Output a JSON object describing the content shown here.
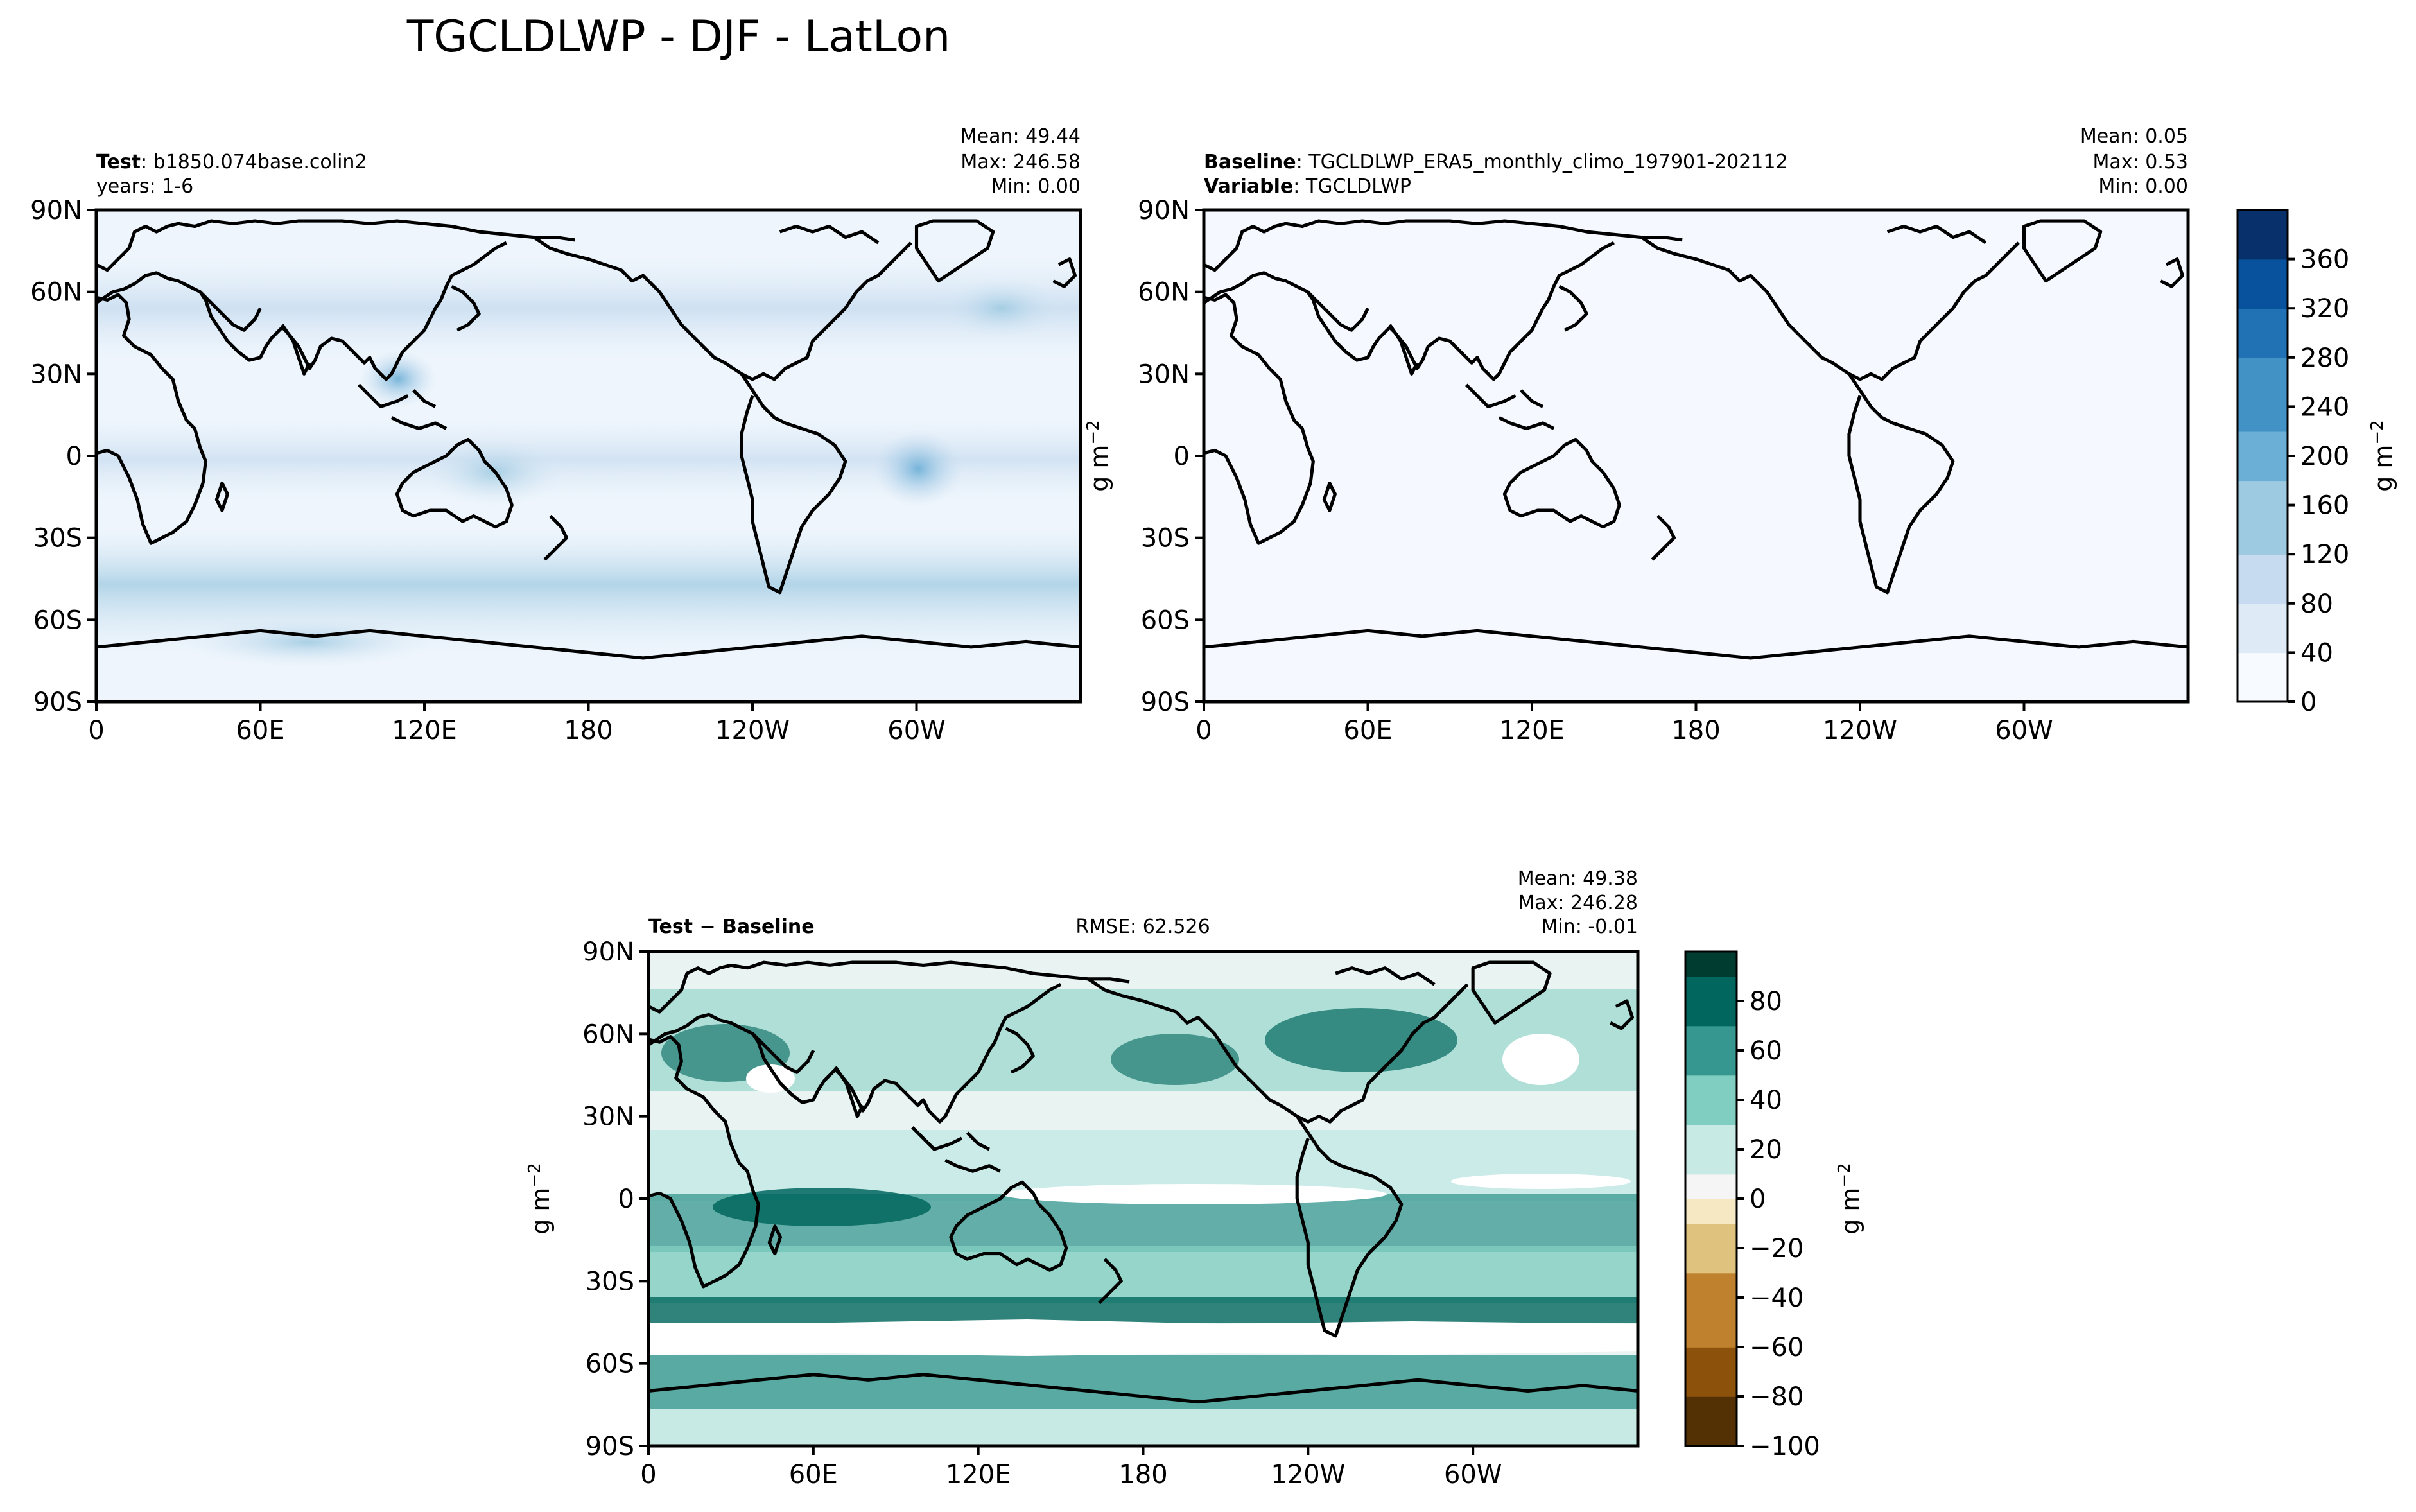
{
  "title": "TGCLDLWP - DJF - LatLon",
  "colors": {
    "test_blues": [
      "#f7fbff",
      "#deebf7",
      "#c6dbef",
      "#9ecae1",
      "#6baed6",
      "#4292c6",
      "#2171b5",
      "#08519c",
      "#08306b"
    ],
    "diff_brbg": [
      "#543005",
      "#8c510a",
      "#bf812d",
      "#dfc27d",
      "#f6e8c3",
      "#f5f5f5",
      "#c7eae5",
      "#80cdc1",
      "#35978f",
      "#01665e",
      "#003c30"
    ]
  },
  "panels": {
    "test": {
      "label_bold": "Test",
      "label_text": ": b1850.074base.colin2",
      "line2": "years: 1-6",
      "mean": "Mean: 49.44",
      "max": "Max: 246.58",
      "min": "Min:  0.00"
    },
    "baseline": {
      "label_bold": "Baseline",
      "label_text": ": TGCLDLWP_ERA5_monthly_climo_197901-202112",
      "line2_bold": "Variable",
      "line2_text": ": TGCLDLWP",
      "mean": "Mean:  0.05",
      "max": "Max:  0.53",
      "min": "Min:  0.00"
    },
    "diff": {
      "label_bold": "Test − Baseline",
      "rmse": "RMSE: 62.526",
      "mean": "Mean: 49.38",
      "max": "Max: 246.28",
      "min": "Min: -0.01"
    }
  },
  "units": {
    "text": "g m",
    "exponent": "−2"
  },
  "chart_data": [
    {
      "type": "heatmap",
      "name": "Test",
      "x_ticks": [
        "0",
        "60E",
        "120E",
        "180",
        "120W",
        "60W"
      ],
      "y_ticks": [
        "90N",
        "60N",
        "30N",
        "0",
        "30S",
        "60S",
        "90S"
      ],
      "xlim": [
        0,
        360
      ],
      "ylim": [
        -90,
        90
      ],
      "colorbar": {
        "levels": [
          0,
          20,
          40,
          60,
          80,
          100,
          120,
          140,
          160,
          180,
          200,
          220,
          240,
          260,
          280,
          300,
          320,
          340,
          360,
          380
        ],
        "tick_labels": [
          "0",
          "40",
          "80",
          "120",
          "160",
          "200",
          "240",
          "280",
          "320",
          "360"
        ],
        "units": "g m⁻²"
      },
      "stats": {
        "mean": 49.44,
        "max": 246.58,
        "min": 0.0
      }
    },
    {
      "type": "heatmap",
      "name": "Baseline",
      "x_ticks": [
        "0",
        "60E",
        "120E",
        "180",
        "120W",
        "60W"
      ],
      "y_ticks": [
        "90N",
        "60N",
        "30N",
        "0",
        "30S",
        "60S",
        "90S"
      ],
      "xlim": [
        0,
        360
      ],
      "ylim": [
        -90,
        90
      ],
      "stats": {
        "mean": 0.05,
        "max": 0.53,
        "min": 0.0
      }
    },
    {
      "type": "heatmap",
      "name": "Test − Baseline",
      "x_ticks": [
        "0",
        "60E",
        "120E",
        "180",
        "120W",
        "60W"
      ],
      "y_ticks": [
        "90N",
        "60N",
        "30N",
        "0",
        "30S",
        "60S",
        "90S"
      ],
      "xlim": [
        0,
        360
      ],
      "ylim": [
        -90,
        90
      ],
      "colorbar": {
        "levels": [
          -100,
          -90,
          -80,
          -70,
          -60,
          -50,
          -40,
          -30,
          -20,
          -10,
          0,
          10,
          20,
          30,
          40,
          50,
          60,
          70,
          80,
          90
        ],
        "tick_labels": [
          "−100",
          "−80",
          "−60",
          "−40",
          "−20",
          "0",
          "20",
          "40",
          "60",
          "80"
        ],
        "units": "g m⁻²"
      },
      "stats": {
        "mean": 49.38,
        "max": 246.28,
        "min": -0.01,
        "rmse": 62.526
      }
    }
  ]
}
